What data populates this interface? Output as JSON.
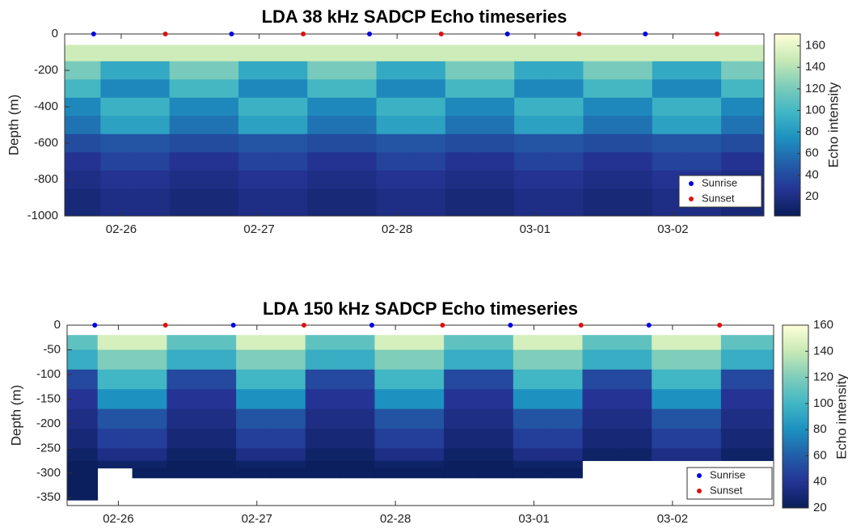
{
  "chart_data": [
    {
      "type": "heatmap",
      "title": "LDA 38 kHz SADCP Echo timeseries",
      "ylabel": "Depth (m)",
      "clabel": "Echo intensity",
      "xlim": [
        56.59,
        61.66
      ],
      "xticks": [
        {
          "value": 57,
          "label": "02-26"
        },
        {
          "value": 58,
          "label": "02-27"
        },
        {
          "value": 59,
          "label": "02-28"
        },
        {
          "value": 60,
          "label": "03-01"
        },
        {
          "value": 61,
          "label": "03-02"
        }
      ],
      "ylim": [
        -1000,
        0
      ],
      "yticks": [
        0,
        -200,
        -400,
        -600,
        -800,
        -1000
      ],
      "clim": [
        2,
        171
      ],
      "cticks": [
        20,
        40,
        60,
        80,
        100,
        120,
        140,
        160
      ],
      "colormap": [
        "#081d58",
        "#253494",
        "#225ea8",
        "#1d91c0",
        "#41b6c4",
        "#7fcdbb",
        "#c7e9b4",
        "#ffffd9"
      ],
      "x_bins": [
        56.59,
        56.85,
        57.1,
        57.35,
        57.6,
        57.85,
        58.1,
        58.35,
        58.6,
        58.85,
        59.1,
        59.35,
        59.6,
        59.85,
        60.1,
        60.35,
        60.6,
        60.85,
        61.1,
        61.35,
        61.66
      ],
      "y_bins": [
        -60,
        -150,
        -250,
        -350,
        -450,
        -550,
        -650,
        -750,
        -850,
        -1000
      ],
      "z": [
        [
          150,
          150,
          150,
          150,
          150,
          150,
          150,
          150,
          150,
          150,
          150,
          150,
          150,
          150,
          150,
          150,
          150,
          150,
          150,
          150
        ],
        [
          120,
          90,
          90,
          120,
          120,
          90,
          90,
          120,
          120,
          90,
          90,
          120,
          120,
          90,
          90,
          120,
          120,
          90,
          90,
          120
        ],
        [
          100,
          70,
          70,
          100,
          100,
          70,
          70,
          100,
          100,
          70,
          70,
          100,
          100,
          70,
          70,
          100,
          100,
          70,
          70,
          100
        ],
        [
          70,
          95,
          95,
          70,
          70,
          95,
          95,
          70,
          70,
          95,
          95,
          70,
          70,
          95,
          95,
          70,
          70,
          95,
          95,
          70
        ],
        [
          60,
          85,
          85,
          60,
          60,
          85,
          85,
          60,
          60,
          85,
          85,
          60,
          60,
          85,
          85,
          60,
          60,
          85,
          85,
          60
        ],
        [
          40,
          45,
          45,
          40,
          40,
          45,
          45,
          40,
          40,
          45,
          45,
          40,
          40,
          45,
          45,
          40,
          40,
          45,
          45,
          40
        ],
        [
          25,
          35,
          35,
          25,
          25,
          35,
          35,
          25,
          25,
          35,
          35,
          25,
          25,
          35,
          35,
          25,
          25,
          35,
          35,
          25
        ],
        [
          20,
          25,
          25,
          20,
          20,
          25,
          25,
          20,
          20,
          25,
          25,
          20,
          20,
          25,
          25,
          20,
          20,
          25,
          25,
          20
        ],
        [
          15,
          20,
          20,
          15,
          15,
          20,
          20,
          15,
          15,
          20,
          20,
          15,
          15,
          20,
          20,
          15,
          15,
          20,
          20,
          15
        ]
      ],
      "legend": "lower right",
      "series": [
        {
          "name": "Sunrise",
          "color": "#0000e0",
          "x": [
            56.8,
            57.8,
            58.8,
            59.8,
            60.8
          ],
          "values": [
            0,
            0,
            0,
            0,
            0
          ]
        },
        {
          "name": "Sunset",
          "color": "#e01010",
          "x": [
            57.32,
            58.32,
            59.32,
            60.32,
            61.32
          ],
          "values": [
            0,
            0,
            0,
            0,
            0
          ]
        }
      ]
    },
    {
      "type": "heatmap",
      "title": "LDA 150 kHz SADCP Echo timeseries",
      "ylabel": "Depth (m)",
      "clabel": "Echo intensity",
      "xlim": [
        56.63,
        61.73
      ],
      "xticks": [
        {
          "value": 57,
          "label": "02-26"
        },
        {
          "value": 58,
          "label": "02-27"
        },
        {
          "value": 59,
          "label": "02-28"
        },
        {
          "value": 60,
          "label": "03-01"
        },
        {
          "value": 61,
          "label": "03-02"
        }
      ],
      "ylim": [
        -366,
        0
      ],
      "yticks": [
        0,
        -50,
        -100,
        -150,
        -200,
        -250,
        -300,
        -350
      ],
      "clim": [
        20,
        160
      ],
      "cticks": [
        20,
        40,
        60,
        80,
        100,
        120,
        140,
        160
      ],
      "colormap": [
        "#081d58",
        "#253494",
        "#225ea8",
        "#1d91c0",
        "#41b6c4",
        "#7fcdbb",
        "#c7e9b4",
        "#ffffd9"
      ],
      "x_bins": [
        56.63,
        56.85,
        57.1,
        57.35,
        57.6,
        57.85,
        58.1,
        58.35,
        58.6,
        58.85,
        59.1,
        59.35,
        59.6,
        59.85,
        60.1,
        60.35,
        60.6,
        60.85,
        61.1,
        61.35,
        61.73
      ],
      "y_bins": [
        -20,
        -50,
        -90,
        -130,
        -170,
        -210,
        -250,
        -275,
        -290,
        -310,
        -355
      ],
      "z": [
        [
          110,
          145,
          145,
          110,
          110,
          145,
          145,
          110,
          110,
          145,
          145,
          110,
          110,
          145,
          145,
          110,
          110,
          145,
          145,
          110
        ],
        [
          95,
          120,
          120,
          95,
          95,
          120,
          120,
          95,
          95,
          120,
          120,
          95,
          95,
          120,
          120,
          95,
          95,
          120,
          120,
          95
        ],
        [
          50,
          100,
          100,
          50,
          50,
          100,
          100,
          50,
          50,
          100,
          100,
          50,
          50,
          100,
          100,
          50,
          50,
          100,
          100,
          50
        ],
        [
          40,
          80,
          80,
          40,
          40,
          80,
          80,
          40,
          40,
          80,
          80,
          40,
          40,
          80,
          80,
          40,
          40,
          80,
          80,
          40
        ],
        [
          35,
          55,
          55,
          35,
          35,
          55,
          55,
          35,
          35,
          55,
          55,
          35,
          35,
          55,
          55,
          35,
          35,
          55,
          55,
          35
        ],
        [
          30,
          45,
          45,
          30,
          30,
          45,
          45,
          30,
          30,
          45,
          45,
          30,
          30,
          45,
          45,
          30,
          30,
          45,
          45,
          30
        ],
        [
          25,
          35,
          35,
          25,
          25,
          35,
          35,
          25,
          25,
          35,
          35,
          25,
          25,
          35,
          35,
          25,
          25,
          35,
          35,
          25
        ],
        [
          22,
          25,
          25,
          22,
          22,
          25,
          25,
          22,
          22,
          25,
          25,
          22,
          22,
          25,
          25,
          null,
          null,
          null,
          null,
          null
        ],
        [
          22,
          null,
          22,
          22,
          22,
          22,
          22,
          22,
          22,
          22,
          22,
          22,
          22,
          22,
          22,
          null,
          null,
          null,
          null,
          null
        ],
        [
          22,
          null,
          null,
          null,
          null,
          null,
          null,
          null,
          null,
          null,
          null,
          null,
          null,
          null,
          null,
          null,
          null,
          null,
          null,
          null
        ]
      ],
      "legend": "lower right",
      "series": [
        {
          "name": "Sunrise",
          "color": "#0000e0",
          "x": [
            56.83,
            57.83,
            58.83,
            59.83,
            60.83
          ],
          "values": [
            0,
            0,
            0,
            0,
            0
          ]
        },
        {
          "name": "Sunset",
          "color": "#e01010",
          "x": [
            57.34,
            58.34,
            59.34,
            60.34,
            61.34
          ],
          "values": [
            0,
            0,
            0,
            0,
            0
          ]
        }
      ]
    }
  ]
}
